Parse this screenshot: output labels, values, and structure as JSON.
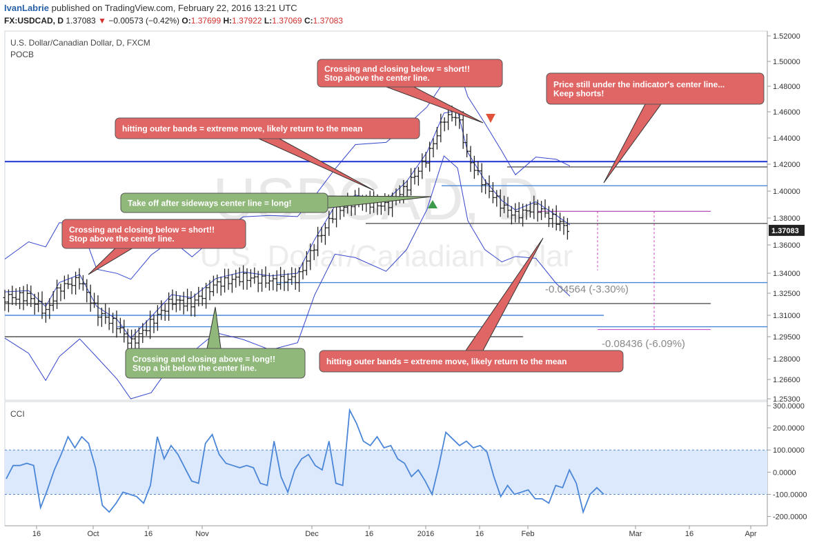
{
  "header": {
    "author": "IvanLabrie",
    "published": "published on TradingView.com, February 22, 2016 13:21 UTC",
    "symbol": "FX:USDCAD, D",
    "last": "1.37083",
    "change": "−0.00573 (−0.42%)",
    "o_label": "O:",
    "o_value": "1.37699",
    "h_label": "H:",
    "h_value": "1.37922",
    "l_label": "L:",
    "l_value": "1.37069",
    "c_label": "C:",
    "c_value": "1.37083"
  },
  "main_pane": {
    "title": "U.S. Dollar/Canadian Dollar, D, FXCM",
    "indicator": "POCB",
    "watermark_symbol": "USDCAD, D",
    "watermark_name": "U.S. Dollar/Canadian Dollar",
    "price_ticks": [
      "1.52000",
      "1.50000",
      "1.48000",
      "1.46000",
      "1.44000",
      "1.42000",
      "1.40000",
      "1.38000",
      "1.36000",
      "1.34000",
      "1.32500",
      "1.31000",
      "1.29500",
      "1.28000",
      "1.26600",
      "1.25300"
    ],
    "last_price_badge": "1.37083"
  },
  "cci_pane": {
    "title": "CCI",
    "ticks": [
      "300.0000",
      "200.0000",
      "100.0000",
      "0.0000",
      "-100.0000",
      "-200.0000"
    ]
  },
  "x_ticks": [
    "16",
    "Oct",
    "16",
    "Nov",
    "Dec",
    "16",
    "2016",
    "16",
    "Feb",
    "Mar",
    "16",
    "Apr"
  ],
  "annotations": [
    {
      "id": "a1",
      "lines": [
        "Crossing and closing below = short!!",
        "Stop above the center line."
      ],
      "color": "#e06666"
    },
    {
      "id": "a2",
      "lines": [
        "hitting outer bands = extreme move, likely return to the mean"
      ],
      "color": "#e06666"
    },
    {
      "id": "a3",
      "lines": [
        "Crossing and closing below = short!!",
        "Stop above the center line."
      ],
      "color": "#e06666"
    },
    {
      "id": "a4",
      "lines": [
        "Price still under the indicator's center line...",
        "Keep shorts!"
      ],
      "color": "#e06666"
    },
    {
      "id": "a5",
      "lines": [
        "Take off after sideways center line = long!"
      ],
      "color": "#8fb87a"
    },
    {
      "id": "a6",
      "lines": [
        "Crossing and closing above = long!!",
        "Stop a bit below the center line."
      ],
      "color": "#8fb87a"
    },
    {
      "id": "a7",
      "lines": [
        "hitting outer bands = extreme move, likely return to the mean"
      ],
      "color": "#e06666"
    }
  ],
  "measures": [
    {
      "text": "-0.04564 (-3.30%)"
    },
    {
      "text": "-0.08436 (-6.09%)"
    }
  ],
  "colors": {
    "bands": "#3344cc",
    "horizontal_blue": "#2a3bd6",
    "horizontal_light": "#4a86d8",
    "horizontal_gray": "#555555",
    "cci_line": "#4a86d8",
    "cci_band": "#dce8fb",
    "annot_red": "#e06666",
    "annot_green": "#8fb87a"
  },
  "chart_data": {
    "type": "ohlc",
    "title": "U.S. Dollar/Canadian Dollar, D, FXCM",
    "x_range": [
      "2015-09-09",
      "2016-04-20"
    ],
    "price_range": [
      1.253,
      1.52
    ],
    "close_path": [
      {
        "date": "2015-09-09",
        "close": 1.322
      },
      {
        "date": "2015-09-16",
        "close": 1.323
      },
      {
        "date": "2015-09-21",
        "close": 1.312
      },
      {
        "date": "2015-09-25",
        "close": 1.329
      },
      {
        "date": "2015-10-01",
        "close": 1.335
      },
      {
        "date": "2015-10-06",
        "close": 1.312
      },
      {
        "date": "2015-10-12",
        "close": 1.303
      },
      {
        "date": "2015-10-16",
        "close": 1.29
      },
      {
        "date": "2015-10-22",
        "close": 1.305
      },
      {
        "date": "2015-10-28",
        "close": 1.32
      },
      {
        "date": "2015-11-03",
        "close": 1.318
      },
      {
        "date": "2015-11-10",
        "close": 1.332
      },
      {
        "date": "2015-11-18",
        "close": 1.337
      },
      {
        "date": "2015-11-26",
        "close": 1.334
      },
      {
        "date": "2015-12-04",
        "close": 1.336
      },
      {
        "date": "2015-12-09",
        "close": 1.36
      },
      {
        "date": "2015-12-15",
        "close": 1.385
      },
      {
        "date": "2015-12-21",
        "close": 1.393
      },
      {
        "date": "2015-12-30",
        "close": 1.389
      },
      {
        "date": "2016-01-05",
        "close": 1.403
      },
      {
        "date": "2016-01-11",
        "close": 1.425
      },
      {
        "date": "2016-01-16",
        "close": 1.455
      },
      {
        "date": "2016-01-20",
        "close": 1.457
      },
      {
        "date": "2016-01-23",
        "close": 1.425
      },
      {
        "date": "2016-01-28",
        "close": 1.404
      },
      {
        "date": "2016-02-02",
        "close": 1.389
      },
      {
        "date": "2016-02-06",
        "close": 1.382
      },
      {
        "date": "2016-02-12",
        "close": 1.388
      },
      {
        "date": "2016-02-18",
        "close": 1.378
      },
      {
        "date": "2016-02-22",
        "close": 1.37083
      }
    ],
    "horizontal_levels": [
      {
        "price": 1.422,
        "style": "dark-blue"
      },
      {
        "price": 1.418,
        "style": "gray"
      },
      {
        "price": 1.404,
        "style": "light-blue"
      },
      {
        "price": 1.385,
        "style": "purple"
      },
      {
        "price": 1.376,
        "style": "gray"
      },
      {
        "price": 1.333,
        "style": "light-blue"
      },
      {
        "price": 1.318,
        "style": "gray"
      },
      {
        "price": 1.31,
        "style": "light-blue"
      },
      {
        "price": 1.302,
        "style": "light-blue"
      },
      {
        "price": 1.295,
        "style": "gray"
      }
    ],
    "cci": {
      "range": [
        -220,
        300
      ],
      "band": [
        -100,
        100
      ],
      "values": [
        -30,
        30,
        30,
        40,
        30,
        -160,
        -80,
        10,
        80,
        160,
        110,
        160,
        130,
        20,
        -150,
        -180,
        -140,
        -90,
        -100,
        -110,
        -140,
        -60,
        160,
        60,
        120,
        80,
        20,
        -40,
        -50,
        130,
        170,
        80,
        40,
        30,
        20,
        30,
        20,
        -50,
        -60,
        140,
        -20,
        -90,
        10,
        60,
        80,
        30,
        10,
        140,
        -50,
        -60,
        280,
        220,
        140,
        120,
        160,
        110,
        120,
        60,
        40,
        -20,
        10,
        -40,
        -100,
        30,
        180,
        150,
        120,
        140,
        110,
        120,
        90,
        -20,
        -110,
        -60,
        -100,
        -90,
        -80,
        -120,
        -120,
        -140,
        -60,
        -70,
        10,
        -50,
        -180,
        -100,
        -70,
        -100
      ]
    }
  }
}
